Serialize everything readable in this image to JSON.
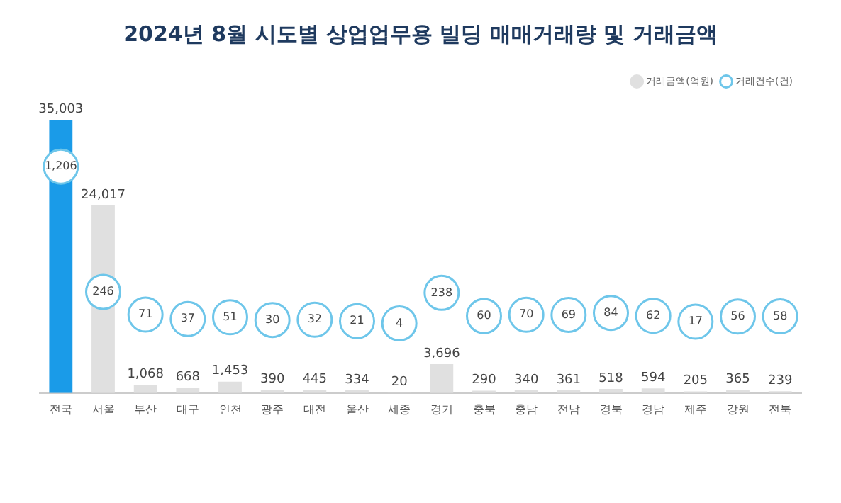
{
  "chart_data": {
    "type": "bar",
    "title": "2024년 8월 시도별 상업업무용 빌딩 매매거래량 및 거래금액",
    "categories": [
      "전국",
      "서울",
      "부산",
      "대구",
      "인천",
      "광주",
      "대전",
      "울산",
      "세종",
      "경기",
      "충북",
      "충남",
      "전남",
      "경북",
      "경남",
      "제주",
      "강원",
      "전북"
    ],
    "legend": "top right",
    "grid": false,
    "tick_labels": "x",
    "marker": "circle",
    "series": [
      {
        "name": "거래금액(억원)",
        "color": "#e0e0e0",
        "colors": [
          "#1a9be8",
          "#e0e0e0",
          "#e0e0e0",
          "#e0e0e0",
          "#e0e0e0",
          "#e0e0e0",
          "#e0e0e0",
          "#e0e0e0",
          "#e0e0e0",
          "#e0e0e0",
          "#e0e0e0",
          "#e0e0e0",
          "#e0e0e0",
          "#e0e0e0",
          "#e0e0e0",
          "#e0e0e0",
          "#e0e0e0",
          "#e0e0e0"
        ],
        "values": [
          35003,
          24017,
          1068,
          668,
          1453,
          390,
          445,
          334,
          20,
          3696,
          290,
          340,
          361,
          518,
          594,
          205,
          365,
          239
        ],
        "value_labels": [
          "35,003",
          "24,017",
          "1,068",
          "668",
          "1,453",
          "390",
          "445",
          "334",
          "20",
          "3,696",
          "290",
          "340",
          "361",
          "518",
          "594",
          "205",
          "365",
          "239"
        ]
      },
      {
        "name": "거래건수(건)",
        "type": "scatter",
        "axis": "y2",
        "color": "#6ec6ea",
        "values": [
          1206,
          246,
          71,
          37,
          51,
          30,
          32,
          21,
          4,
          238,
          60,
          70,
          69,
          84,
          62,
          17,
          56,
          58
        ],
        "value_labels": [
          "1,206",
          "246",
          "71",
          "37",
          "51",
          "30",
          "32",
          "21",
          "4",
          "238",
          "60",
          "70",
          "69",
          "84",
          "62",
          "17",
          "56",
          "58"
        ]
      }
    ]
  }
}
